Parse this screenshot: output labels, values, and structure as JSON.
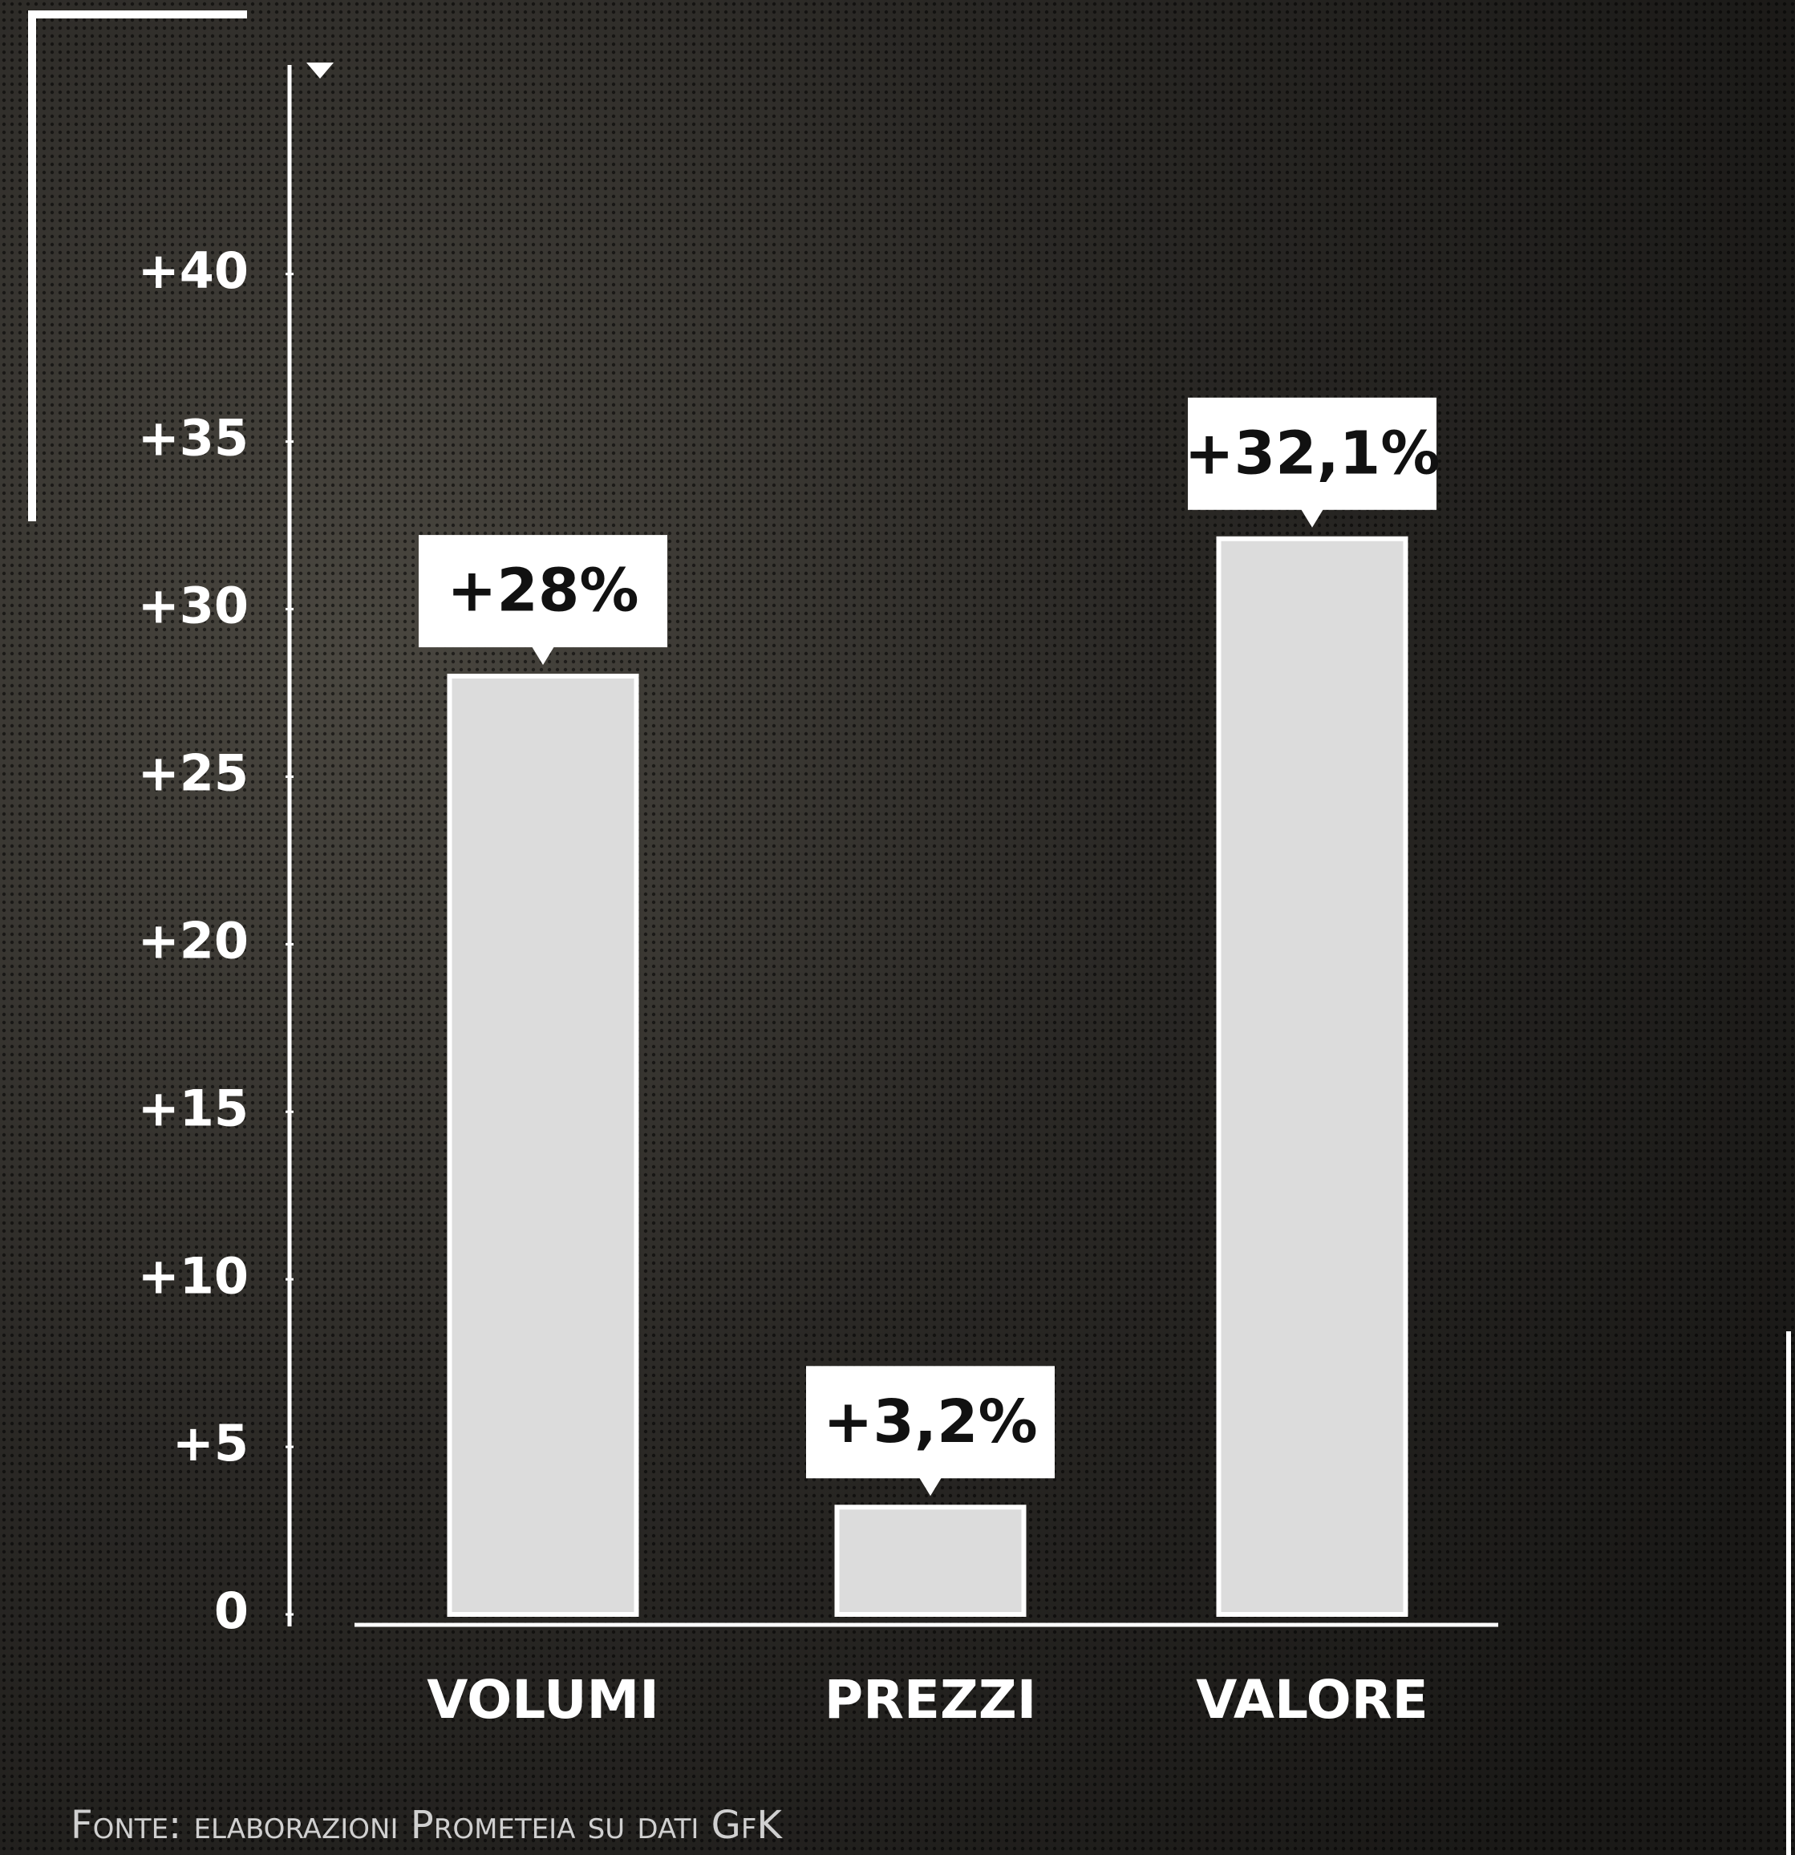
{
  "chart_data": {
    "type": "bar",
    "categories": [
      "VOLUMI",
      "PREZZI",
      "VALORE"
    ],
    "values": [
      28,
      3.2,
      32.1
    ],
    "value_labels": [
      "+28%",
      "+3,2%",
      "+32,1%"
    ],
    "color": "#dcdcdc",
    "ylim": [
      0,
      46
    ],
    "yticks": [
      0,
      {
        "value": 5,
        "label": "+5"
      },
      {
        "value": 10,
        "label": "+10"
      },
      {
        "value": 15,
        "label": "+15"
      },
      {
        "value": 20,
        "label": "+20"
      },
      {
        "value": 25,
        "label": "+25"
      },
      {
        "value": 30,
        "label": "+30"
      },
      {
        "value": 35,
        "label": "+35"
      },
      {
        "value": 40,
        "label": "+40"
      }
    ],
    "source": "Fonte: elaborazioni Prometeia su dati GfK"
  }
}
